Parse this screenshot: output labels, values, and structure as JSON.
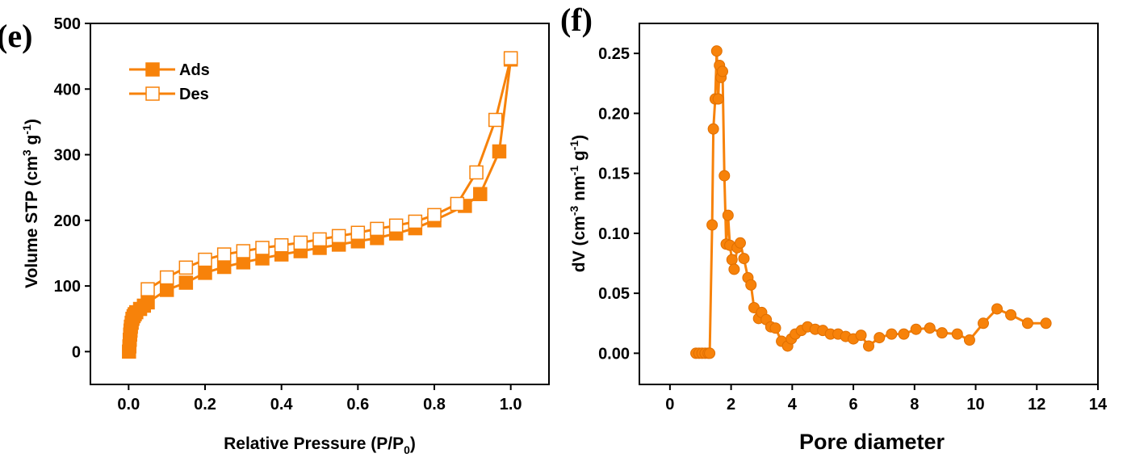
{
  "chart_data": [
    {
      "panel_label": "(e)",
      "type": "line",
      "xlabel": "Relative Pressure (P/P",
      "xlabel_sub": "0",
      "xlabel_end": ")",
      "ylabel": "Volume STP (cm",
      "ylabel_sup1": "3",
      "ylabel_mid": " g",
      "ylabel_sup2": "-1",
      "ylabel_end": ")",
      "xlim": [
        -0.1,
        1.1
      ],
      "ylim": [
        -50,
        500
      ],
      "xticks": [
        0.0,
        0.2,
        0.4,
        0.6,
        0.8,
        1.0
      ],
      "xtick_labels": [
        "0.0",
        "0.2",
        "0.4",
        "0.6",
        "0.8",
        "1.0"
      ],
      "yticks": [
        0,
        100,
        200,
        300,
        400,
        500
      ],
      "ytick_labels": [
        "0",
        "100",
        "200",
        "300",
        "400",
        "500"
      ],
      "color": "#f7820a",
      "legend_position": "top-left",
      "series": [
        {
          "name": "Ads",
          "marker": "square-filled",
          "x": [
            0.001,
            0.002,
            0.003,
            0.004,
            0.005,
            0.006,
            0.008,
            0.01,
            0.013,
            0.016,
            0.02,
            0.03,
            0.04,
            0.05,
            0.1,
            0.15,
            0.2,
            0.25,
            0.3,
            0.35,
            0.4,
            0.45,
            0.5,
            0.55,
            0.6,
            0.65,
            0.7,
            0.75,
            0.8,
            0.88,
            0.92,
            0.97,
            1.0
          ],
          "y": [
            0,
            8,
            18,
            26,
            32,
            38,
            44,
            50,
            54,
            57,
            60,
            65,
            70,
            75,
            94,
            105,
            120,
            129,
            136,
            142,
            148,
            153,
            158,
            163,
            168,
            173,
            180,
            188,
            200,
            222,
            240,
            305,
            445
          ]
        },
        {
          "name": "Des",
          "marker": "square-open",
          "x": [
            1.0,
            0.96,
            0.91,
            0.86,
            0.8,
            0.75,
            0.7,
            0.65,
            0.6,
            0.55,
            0.5,
            0.45,
            0.4,
            0.35,
            0.3,
            0.25,
            0.2,
            0.15,
            0.1,
            0.05
          ],
          "y": [
            447,
            353,
            273,
            225,
            208,
            198,
            192,
            187,
            181,
            176,
            171,
            166,
            162,
            158,
            153,
            148,
            140,
            128,
            113,
            95
          ]
        }
      ]
    },
    {
      "panel_label": "(f)",
      "type": "line",
      "xlabel": "Pore diameter",
      "ylabel": "dV (cm",
      "ylabel_sup1": "-3",
      "ylabel_mid": " nm",
      "ylabel_sup2": "-1",
      "ylabel_mid2": " g",
      "ylabel_sup3": "-1",
      "ylabel_end": ")",
      "xlim": [
        -1,
        14
      ],
      "ylim": [
        -0.026,
        0.275
      ],
      "xticks": [
        0,
        2,
        4,
        6,
        8,
        10,
        12,
        14
      ],
      "xtick_labels": [
        "0",
        "2",
        "4",
        "6",
        "8",
        "10",
        "12",
        "14"
      ],
      "yticks": [
        0.0,
        0.05,
        0.1,
        0.15,
        0.2,
        0.25
      ],
      "ytick_labels": [
        "0.00",
        "0.05",
        "0.10",
        "0.15",
        "0.20",
        "0.25"
      ],
      "color": "#f7820a",
      "series": [
        {
          "marker": "circle-filled",
          "x": [
            0.85,
            0.95,
            1.05,
            1.15,
            1.25,
            1.3,
            1.38,
            1.42,
            1.48,
            1.53,
            1.58,
            1.62,
            1.67,
            1.72,
            1.78,
            1.84,
            1.9,
            1.96,
            2.03,
            2.1,
            2.2,
            2.3,
            2.42,
            2.55,
            2.65,
            2.75,
            2.9,
            3.0,
            3.15,
            3.3,
            3.45,
            3.65,
            3.85,
            3.97,
            4.1,
            4.3,
            4.5,
            4.75,
            5.0,
            5.25,
            5.5,
            5.75,
            6.0,
            6.25,
            6.5,
            6.85,
            7.25,
            7.65,
            8.05,
            8.5,
            8.9,
            9.4,
            9.8,
            10.25,
            10.7,
            11.15,
            11.7,
            12.3
          ],
          "y": [
            0.0,
            0.0,
            0.0,
            0.0,
            0.0,
            0.0,
            0.107,
            0.187,
            0.212,
            0.252,
            0.212,
            0.24,
            0.23,
            0.235,
            0.148,
            0.091,
            0.115,
            0.09,
            0.078,
            0.07,
            0.088,
            0.092,
            0.079,
            0.063,
            0.057,
            0.038,
            0.029,
            0.034,
            0.028,
            0.022,
            0.021,
            0.01,
            0.006,
            0.012,
            0.016,
            0.019,
            0.022,
            0.02,
            0.019,
            0.016,
            0.016,
            0.014,
            0.012,
            0.015,
            0.006,
            0.013,
            0.016,
            0.016,
            0.02,
            0.021,
            0.017,
            0.016,
            0.011,
            0.025,
            0.037,
            0.032,
            0.025,
            0.025
          ]
        }
      ]
    }
  ]
}
